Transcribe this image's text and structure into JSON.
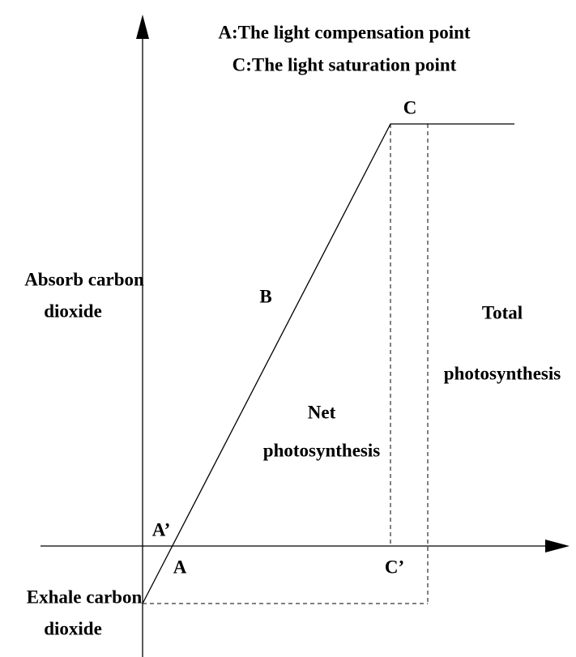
{
  "legend": [
    "A:The light compensation point",
    "C:The light saturation point"
  ],
  "points": {
    "c": "C",
    "b": "B",
    "a_prime": "A’",
    "a": "A",
    "c_prime": "C’"
  },
  "absorb": [
    "Absorb carbon",
    "dioxide"
  ],
  "exhale": [
    "Exhale carbon",
    "dioxide"
  ],
  "net": [
    "Net",
    "photosynthesis"
  ],
  "total": [
    "Total",
    "photosynthesis"
  ]
}
